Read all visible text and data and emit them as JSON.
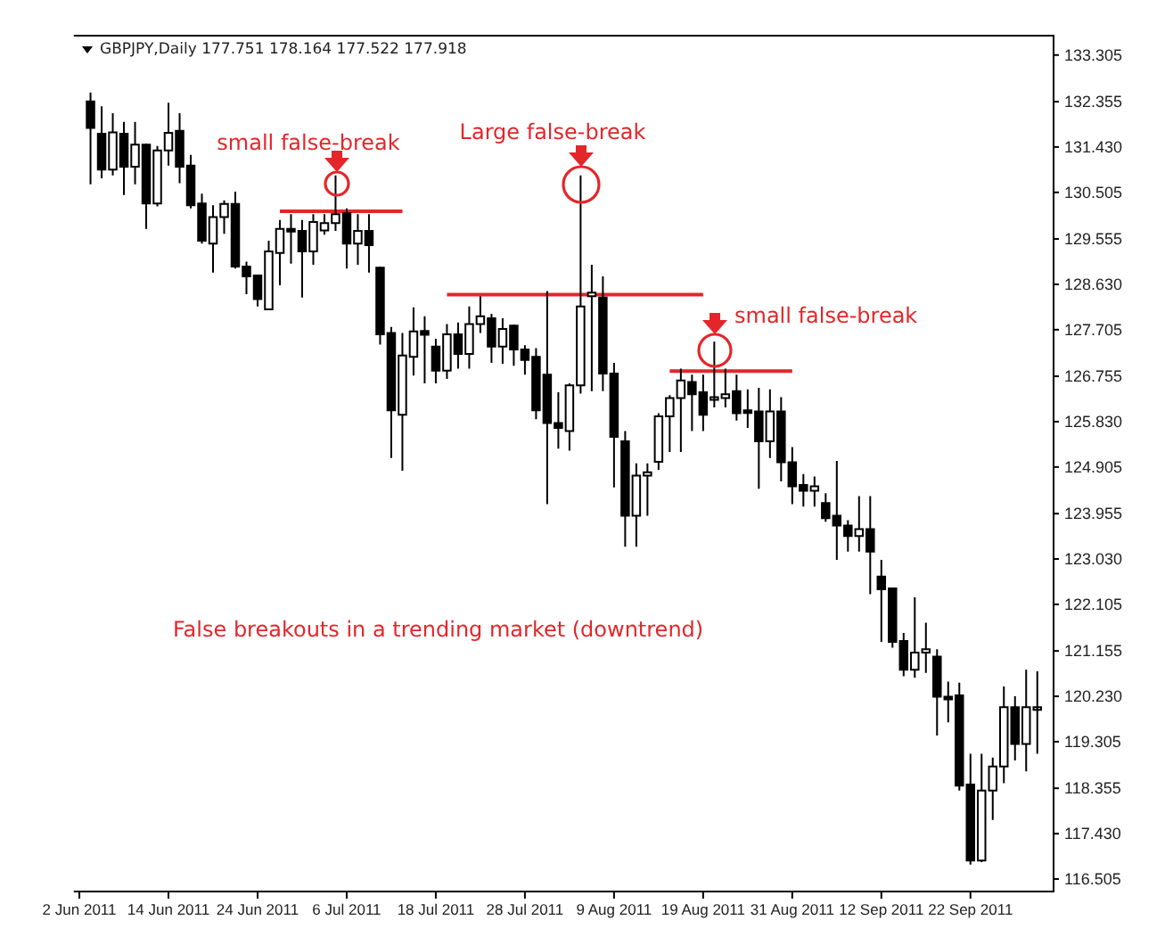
{
  "chart_data": {
    "type": "candlestick",
    "title": "GBPJPY,Daily  177.751 178.164 177.522 177.918",
    "categories": [
      "2 Jun 2011",
      null,
      null,
      null,
      null,
      null,
      null,
      null,
      "14 Jun 2011",
      null,
      null,
      null,
      null,
      null,
      null,
      null,
      "24 Jun 2011",
      null,
      null,
      null,
      null,
      null,
      null,
      null,
      "6 Jul 2011",
      null,
      null,
      null,
      null,
      null,
      null,
      null,
      "18 Jul 2011",
      null,
      null,
      null,
      null,
      null,
      null,
      null,
      "28 Jul 2011",
      null,
      null,
      null,
      null,
      null,
      null,
      null,
      "9 Aug 2011",
      null,
      null,
      null,
      null,
      null,
      null,
      null,
      "19 Aug 2011",
      null,
      null,
      null,
      null,
      null,
      null,
      null,
      "31 Aug 2011",
      null,
      null,
      null,
      null,
      null,
      null,
      null,
      "12 Sep 2011",
      null,
      null,
      null,
      null,
      null,
      null,
      null,
      "22 Sep 2011",
      null,
      null,
      null,
      null,
      null,
      null
    ],
    "ohlc": [
      null,
      [
        132.36,
        132.54,
        130.67,
        131.82
      ],
      [
        131.7,
        132.26,
        130.79,
        130.97
      ],
      [
        130.97,
        132.12,
        130.85,
        131.73
      ],
      [
        131.7,
        131.94,
        130.45,
        131.03
      ],
      [
        131.03,
        131.94,
        130.67,
        131.48
      ],
      [
        131.48,
        131.5,
        129.76,
        130.28
      ],
      [
        130.28,
        131.45,
        130.22,
        131.36
      ],
      [
        131.36,
        132.33,
        131.05,
        131.72
      ],
      [
        131.76,
        132.12,
        130.69,
        131.03
      ],
      [
        131.05,
        131.27,
        130.18,
        130.24
      ],
      [
        130.28,
        130.48,
        129.46,
        129.52
      ],
      [
        129.46,
        130.24,
        128.87,
        130.0
      ],
      [
        130.0,
        130.34,
        129.66,
        130.27
      ],
      [
        130.27,
        130.52,
        128.95,
        128.99
      ],
      [
        128.99,
        129.09,
        128.43,
        128.79
      ],
      [
        128.81,
        128.83,
        128.18,
        128.33
      ],
      [
        128.12,
        129.52,
        128.1,
        129.3
      ],
      [
        129.27,
        129.94,
        128.61,
        129.76
      ],
      [
        129.76,
        130.06,
        129.05,
        129.74
      ],
      [
        129.72,
        129.94,
        128.36,
        129.3
      ],
      [
        129.3,
        130.06,
        129.03,
        129.9
      ],
      [
        129.73,
        130.06,
        129.64,
        129.88
      ],
      [
        129.88,
        130.85,
        129.72,
        130.06
      ],
      [
        130.08,
        130.18,
        128.95,
        129.46
      ],
      [
        129.46,
        130.06,
        129.03,
        129.72
      ],
      [
        129.72,
        130.06,
        128.87,
        129.43
      ],
      [
        128.97,
        128.99,
        127.4,
        127.61
      ],
      [
        127.64,
        127.76,
        125.09,
        126.06
      ],
      [
        125.97,
        127.64,
        124.83,
        127.18
      ],
      [
        127.15,
        128.16,
        126.77,
        127.67
      ],
      [
        127.68,
        127.98,
        126.61,
        127.6
      ],
      [
        127.36,
        127.52,
        126.61,
        126.87
      ],
      [
        126.87,
        127.82,
        126.7,
        127.61
      ],
      [
        127.61,
        127.85,
        126.91,
        127.21
      ],
      [
        127.21,
        128.18,
        126.91,
        127.82
      ],
      [
        127.82,
        128.39,
        127.64,
        127.98
      ],
      [
        127.94,
        128.03,
        127.03,
        127.36
      ],
      [
        127.36,
        127.94,
        127.01,
        127.72
      ],
      [
        127.79,
        127.81,
        126.97,
        127.3
      ],
      [
        127.3,
        127.39,
        126.79,
        127.09
      ],
      [
        127.15,
        127.33,
        125.88,
        126.06
      ],
      [
        126.79,
        128.49,
        124.15,
        125.8
      ],
      [
        125.8,
        126.43,
        125.28,
        125.7
      ],
      [
        125.64,
        126.61,
        125.24,
        126.57
      ],
      [
        126.57,
        130.85,
        126.4,
        128.18
      ],
      [
        128.39,
        129.03,
        126.45,
        128.46
      ],
      [
        128.36,
        128.79,
        126.45,
        126.81
      ],
      [
        126.81,
        127.03,
        124.49,
        125.52
      ],
      [
        125.43,
        125.64,
        123.28,
        123.91
      ],
      [
        123.91,
        124.98,
        123.28,
        124.73
      ],
      [
        124.73,
        124.98,
        123.91,
        124.8
      ],
      [
        125.01,
        126.0,
        124.85,
        125.94
      ],
      [
        125.94,
        126.37,
        125.21,
        126.31
      ],
      [
        126.31,
        126.91,
        125.21,
        126.67
      ],
      [
        126.64,
        126.79,
        125.64,
        126.39
      ],
      [
        126.43,
        126.79,
        125.64,
        125.97
      ],
      [
        126.31,
        127.46,
        126.12,
        126.33
      ],
      [
        126.31,
        126.91,
        126.12,
        126.39
      ],
      [
        126.45,
        126.79,
        125.85,
        126.0
      ],
      [
        126.06,
        126.49,
        125.7,
        126.03
      ],
      [
        126.04,
        126.52,
        124.46,
        125.43
      ],
      [
        125.43,
        126.49,
        125.09,
        126.04
      ],
      [
        126.04,
        126.33,
        124.61,
        125.0
      ],
      [
        125.0,
        125.31,
        124.15,
        124.51
      ],
      [
        124.54,
        124.76,
        124.1,
        124.42
      ],
      [
        124.42,
        124.71,
        124.1,
        124.51
      ],
      [
        124.17,
        124.37,
        123.79,
        123.86
      ],
      [
        123.91,
        125.03,
        123.01,
        123.71
      ],
      [
        123.71,
        123.82,
        123.18,
        123.5
      ],
      [
        123.5,
        124.31,
        123.18,
        123.64
      ],
      [
        123.64,
        124.31,
        122.31,
        123.18
      ],
      [
        122.67,
        123.01,
        121.34,
        122.41
      ],
      [
        122.43,
        122.45,
        121.22,
        121.34
      ],
      [
        121.36,
        121.52,
        120.64,
        120.77
      ],
      [
        120.77,
        122.25,
        120.61,
        121.12
      ],
      [
        121.12,
        121.73,
        120.71,
        121.19
      ],
      [
        121.04,
        121.19,
        119.43,
        120.22
      ],
      [
        120.22,
        120.53,
        119.7,
        120.21
      ],
      [
        120.25,
        120.51,
        118.31,
        118.41
      ],
      [
        118.43,
        119.06,
        116.8,
        116.88
      ],
      [
        116.88,
        119.06,
        116.85,
        118.31
      ],
      [
        118.31,
        118.98,
        117.71,
        118.8
      ],
      [
        118.8,
        120.43,
        118.46,
        120.01
      ],
      [
        120.01,
        120.23,
        118.92,
        119.26
      ],
      [
        119.26,
        120.77,
        118.7,
        120.01
      ],
      [
        119.99,
        120.74,
        119.06,
        120.01
      ]
    ],
    "series": [
      {
        "type": "line",
        "color": "#e3262a",
        "values": [
          null,
          null,
          null,
          null,
          null,
          null,
          null,
          null,
          null,
          null,
          null,
          null,
          null,
          null,
          null,
          null,
          null,
          null,
          130.12,
          130.12,
          130.12,
          130.12,
          130.12,
          130.12,
          130.12,
          130.12,
          130.12,
          130.12,
          130.12,
          130.12,
          null,
          null,
          null,
          null,
          null,
          null,
          null,
          null,
          null,
          null,
          null,
          null,
          null,
          null,
          null,
          null,
          null,
          null,
          null,
          null,
          null,
          null,
          null,
          null,
          null,
          null,
          null,
          null,
          null,
          null,
          null,
          null,
          null,
          null,
          null,
          null,
          null,
          null,
          null,
          null,
          null,
          null,
          null,
          null,
          null,
          null,
          null,
          null,
          null,
          null,
          null,
          null,
          null,
          null,
          null,
          null,
          null
        ]
      },
      {
        "type": "line",
        "color": "#e3262a",
        "values": [
          null,
          null,
          null,
          null,
          null,
          null,
          null,
          null,
          null,
          null,
          null,
          null,
          null,
          null,
          null,
          null,
          null,
          null,
          null,
          null,
          null,
          null,
          null,
          null,
          null,
          null,
          null,
          null,
          null,
          null,
          null,
          null,
          null,
          128.42,
          128.42,
          128.42,
          128.42,
          128.42,
          128.42,
          128.42,
          128.42,
          128.42,
          128.42,
          128.42,
          128.42,
          128.42,
          128.42,
          128.42,
          128.42,
          128.42,
          128.42,
          128.42,
          128.42,
          128.42,
          128.42,
          128.42,
          128.42,
          null,
          null,
          null,
          null,
          null,
          null,
          null,
          null,
          null,
          null,
          null,
          null,
          null,
          null,
          null,
          null,
          null,
          null,
          null,
          null,
          null,
          null,
          null,
          null,
          null,
          null,
          null,
          null,
          null,
          null
        ]
      },
      {
        "type": "line",
        "color": "#e3262a",
        "values": [
          null,
          null,
          null,
          null,
          null,
          null,
          null,
          null,
          null,
          null,
          null,
          null,
          null,
          null,
          null,
          null,
          null,
          null,
          null,
          null,
          null,
          null,
          null,
          null,
          null,
          null,
          null,
          null,
          null,
          null,
          null,
          null,
          null,
          null,
          null,
          null,
          null,
          null,
          null,
          null,
          null,
          null,
          null,
          null,
          null,
          null,
          null,
          null,
          null,
          null,
          null,
          null,
          null,
          126.86,
          126.86,
          126.86,
          126.86,
          126.86,
          126.86,
          126.86,
          126.86,
          126.86,
          126.86,
          126.86,
          126.86,
          null,
          null,
          null,
          null,
          null,
          null,
          null,
          null,
          null,
          null,
          null,
          null,
          null,
          null,
          null,
          null,
          null,
          null,
          null,
          null,
          null,
          null
        ]
      }
    ],
    "ylim": [
      116.25,
      133.7
    ],
    "yticks": [
      133.305,
      132.355,
      {
        "value": 131.43,
        "label": "131.430"
      },
      130.505,
      129.555,
      {
        "value": 128.63,
        "label": "128.630"
      },
      127.705,
      126.755,
      {
        "value": 125.83,
        "label": "125.830"
      },
      124.905,
      123.955,
      {
        "value": 123.03,
        "label": "123.030"
      },
      122.105,
      121.155,
      {
        "value": 120.23,
        "label": "120.230"
      },
      119.305,
      118.355,
      {
        "value": 117.43,
        "label": "117.430"
      },
      116.505
    ],
    "annotations": [
      "small false-break",
      "Large false-break",
      "small false-break",
      "False breakouts in a trending market (downtrend)"
    ]
  }
}
